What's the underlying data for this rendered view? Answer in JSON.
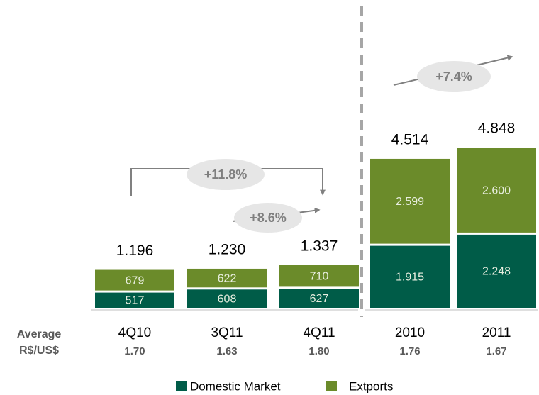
{
  "chart_data": {
    "type": "stacked-bar",
    "categories": [
      "4Q10",
      "3Q11",
      "4Q11",
      "2010",
      "2011"
    ],
    "series": [
      {
        "name": "Domestic Market",
        "color": "#005c48",
        "values": [
          517,
          608,
          627,
          1915,
          2248
        ],
        "value_labels": [
          "517",
          "608",
          "627",
          "1.915",
          "2.248"
        ]
      },
      {
        "name": "Extports",
        "color": "#6b8b2a",
        "values": [
          679,
          622,
          710,
          2599,
          2600
        ],
        "value_labels": [
          "679",
          "622",
          "710",
          "2.599",
          "2.600"
        ]
      }
    ],
    "totals": {
      "values": [
        1196,
        1230,
        1337,
        4514,
        4848
      ],
      "value_labels": [
        "1.196",
        "1.230",
        "1.337",
        "4.514",
        "4.848"
      ]
    },
    "annotations": [
      "+11.8%",
      "+8.6%",
      "+7.4%"
    ],
    "fx": {
      "label": [
        "Average",
        "R$/US$"
      ],
      "rates": [
        "1.70",
        "1.63",
        "1.80",
        "1.76",
        "1.67"
      ]
    }
  }
}
